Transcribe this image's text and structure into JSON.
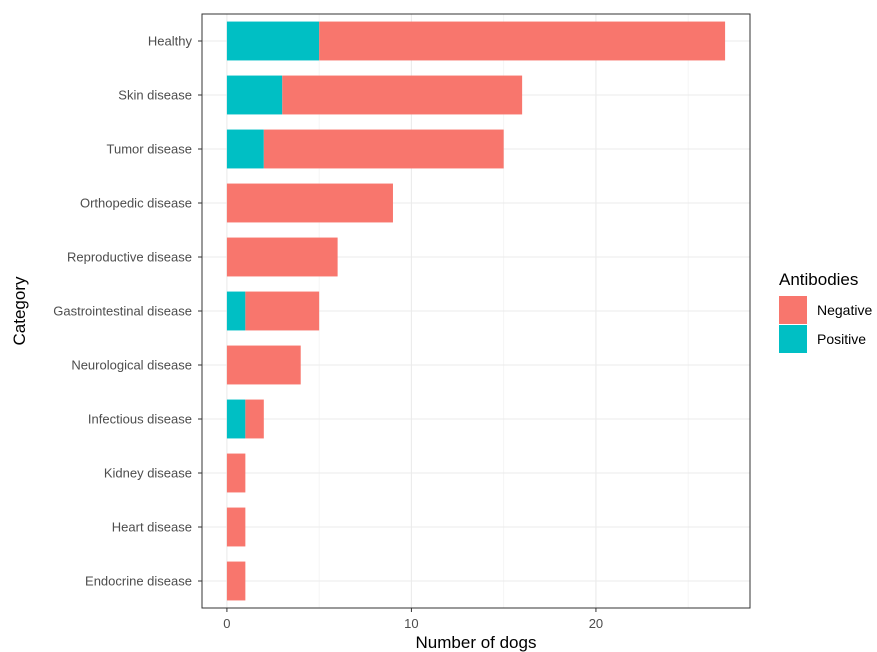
{
  "chart_data": {
    "type": "bar",
    "orientation": "horizontal",
    "stacked": true,
    "categories": [
      "Healthy",
      "Skin disease",
      "Tumor disease",
      "Orthopedic disease",
      "Reproductive disease",
      "Gastrointestinal disease",
      "Neurological disease",
      "Infectious disease",
      "Kidney disease",
      "Heart disease",
      "Endocrine disease"
    ],
    "series": [
      {
        "name": "Positive",
        "color": "#00BFC4",
        "values": [
          5,
          3,
          2,
          0,
          0,
          1,
          0,
          1,
          0,
          0,
          0
        ]
      },
      {
        "name": "Negative",
        "color": "#F8766D",
        "values": [
          22,
          13,
          13,
          9,
          6,
          4,
          4,
          1,
          1,
          1,
          1
        ]
      }
    ],
    "xlabel": "Number of dogs",
    "ylabel": "Category",
    "xlim": [
      -1.35,
      28.35
    ],
    "xticks": [
      0,
      10,
      20
    ],
    "grid": true,
    "legend": {
      "title": "Antibodies",
      "placement": "right",
      "entries": [
        {
          "label": "Negative",
          "color": "#F8766D"
        },
        {
          "label": "Positive",
          "color": "#00BFC4"
        }
      ]
    }
  }
}
